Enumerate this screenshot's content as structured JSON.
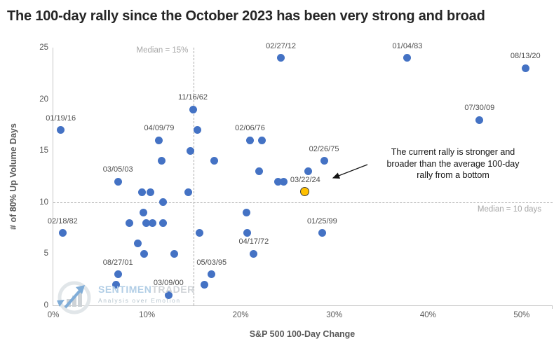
{
  "annotation": {
    "lines": [
      "The current rally is stronger and",
      "broader than the average 100-day",
      "rally from a bottom"
    ]
  },
  "watermark": {
    "brand_primary": "SENTIMEN",
    "brand_secondary": "TRADER",
    "tagline": "Analysis over Emotion"
  },
  "colors": {
    "point": "#4472C4",
    "current_point": "#FFC000",
    "current_point_border": "#3F3F3F",
    "median_line": "#ABABAB",
    "median_label": "#A6A6A6",
    "axis_line": "#C6C6C6",
    "tick_label": "#595959",
    "title": "#262626"
  },
  "chart_data": {
    "type": "scatter",
    "title": "The 100-day rally since the October 2023 has been very strong and broad",
    "xlabel": "S&P 500 100-Day Change",
    "ylabel": "# of 80% Up Volume Days",
    "xlim": [
      0,
      53.3
    ],
    "ylim": [
      0,
      25
    ],
    "x_ticks": [
      "0%",
      "10%",
      "20%",
      "30%",
      "40%",
      "50%"
    ],
    "x_tick_values": [
      0,
      10,
      20,
      30,
      40,
      50
    ],
    "y_tick_values": [
      0,
      5,
      10,
      15,
      20,
      25
    ],
    "grid": false,
    "median_x": {
      "value": 15,
      "label": "Median = 15%"
    },
    "median_y": {
      "value": 10,
      "label": "Median = 10 days"
    },
    "points": [
      {
        "x": 0.8,
        "y": 17,
        "label": "01/19/16"
      },
      {
        "x": 1.0,
        "y": 7,
        "label": "02/18/82"
      },
      {
        "x": 6.7,
        "y": 2
      },
      {
        "x": 6.9,
        "y": 3,
        "label": "08/27/01"
      },
      {
        "x": 6.9,
        "y": 12,
        "label": "03/05/03"
      },
      {
        "x": 8.1,
        "y": 8
      },
      {
        "x": 9.0,
        "y": 6
      },
      {
        "x": 9.5,
        "y": 11
      },
      {
        "x": 9.6,
        "y": 9
      },
      {
        "x": 9.7,
        "y": 5
      },
      {
        "x": 9.9,
        "y": 8
      },
      {
        "x": 10.4,
        "y": 11
      },
      {
        "x": 10.6,
        "y": 8
      },
      {
        "x": 11.3,
        "y": 16,
        "label": "04/09/79"
      },
      {
        "x": 11.6,
        "y": 14
      },
      {
        "x": 11.7,
        "y": 10
      },
      {
        "x": 11.7,
        "y": 8
      },
      {
        "x": 12.3,
        "y": 1,
        "label": "03/09/00"
      },
      {
        "x": 12.9,
        "y": 5
      },
      {
        "x": 14.4,
        "y": 11
      },
      {
        "x": 14.6,
        "y": 15
      },
      {
        "x": 14.9,
        "y": 19,
        "label": "11/16/62"
      },
      {
        "x": 15.4,
        "y": 17
      },
      {
        "x": 15.6,
        "y": 7
      },
      {
        "x": 16.1,
        "y": 2
      },
      {
        "x": 16.9,
        "y": 3,
        "label": "05/03/95"
      },
      {
        "x": 17.2,
        "y": 14
      },
      {
        "x": 20.6,
        "y": 9
      },
      {
        "x": 20.7,
        "y": 7
      },
      {
        "x": 21.0,
        "y": 16,
        "label": "02/06/76"
      },
      {
        "x": 21.4,
        "y": 5,
        "label": "04/17/72"
      },
      {
        "x": 22.0,
        "y": 13
      },
      {
        "x": 22.3,
        "y": 16
      },
      {
        "x": 24.0,
        "y": 12
      },
      {
        "x": 24.3,
        "y": 24,
        "label": "02/27/12"
      },
      {
        "x": 24.6,
        "y": 12
      },
      {
        "x": 26.9,
        "y": 11,
        "label": "03/22/24",
        "current": true
      },
      {
        "x": 27.2,
        "y": 13
      },
      {
        "x": 28.7,
        "y": 7,
        "label": "01/25/99"
      },
      {
        "x": 28.9,
        "y": 14,
        "label": "02/26/75"
      },
      {
        "x": 37.8,
        "y": 24,
        "label": "01/04/83"
      },
      {
        "x": 45.5,
        "y": 18,
        "label": "07/30/09"
      },
      {
        "x": 50.4,
        "y": 23,
        "label": "08/13/20"
      }
    ]
  }
}
